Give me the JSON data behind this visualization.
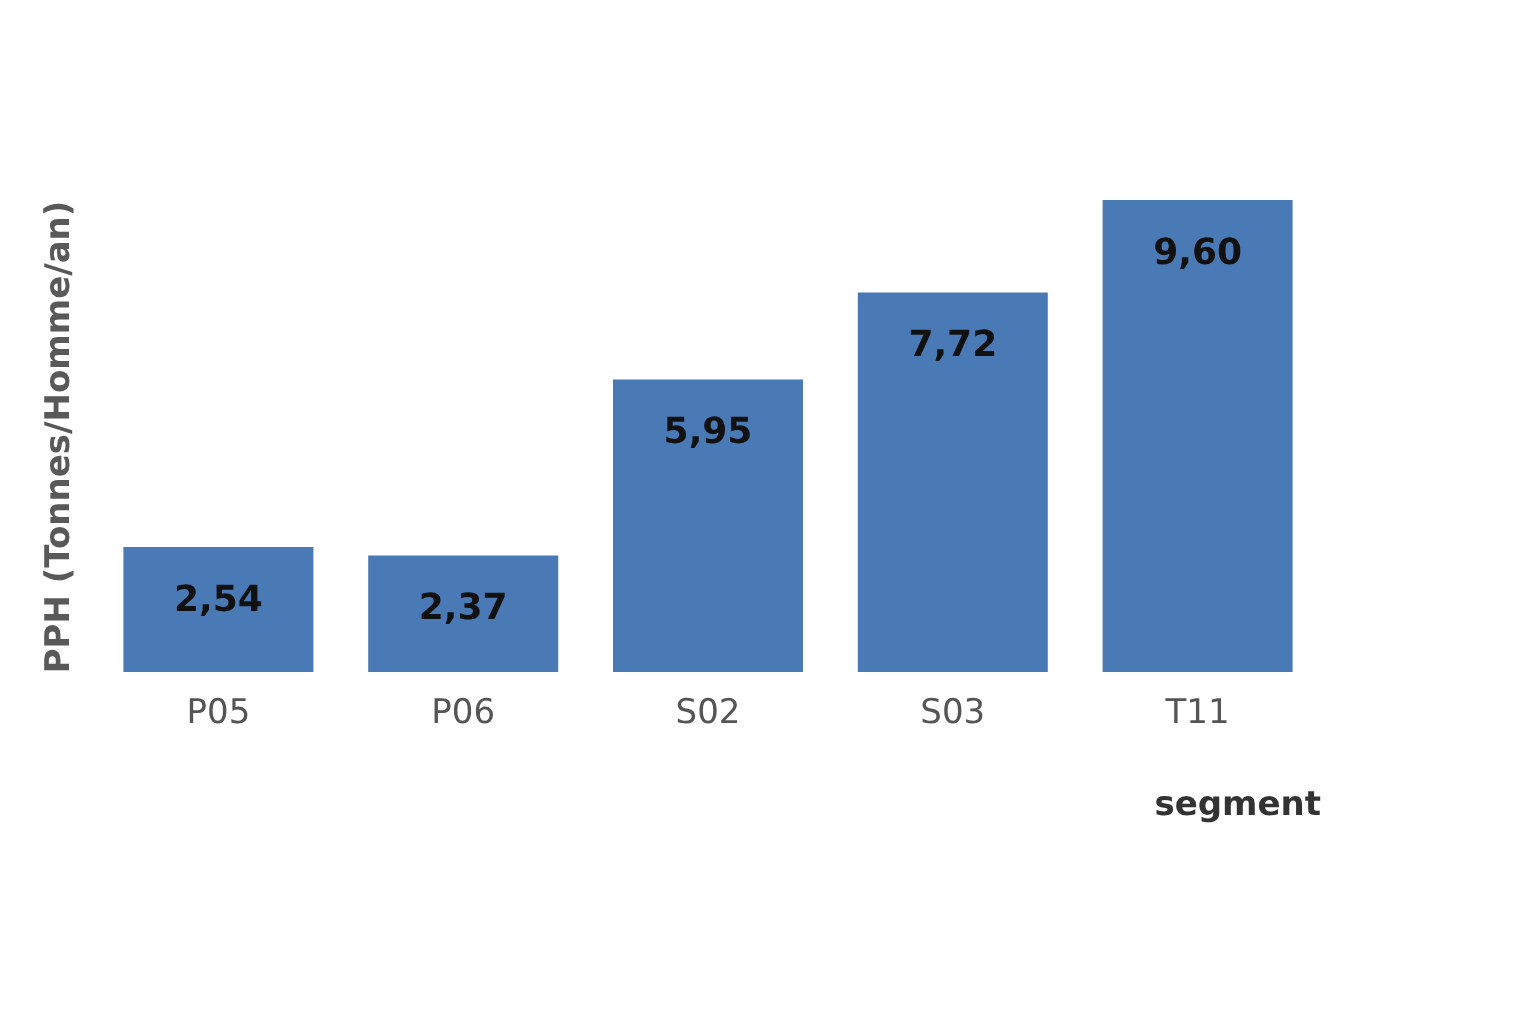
{
  "chart_data": {
    "type": "bar",
    "xlabel": "segment",
    "ylabel": "PPH (Tonnes/Homme/an)",
    "categories": [
      "P05",
      "P06",
      "S02",
      "S03",
      "T11"
    ],
    "values": [
      2.54,
      2.37,
      5.95,
      7.72,
      9.6
    ],
    "value_labels": [
      "2,54",
      "2,37",
      "5,95",
      "7,72",
      "9,60"
    ],
    "color": "#4a7ab5",
    "grid": false
  }
}
